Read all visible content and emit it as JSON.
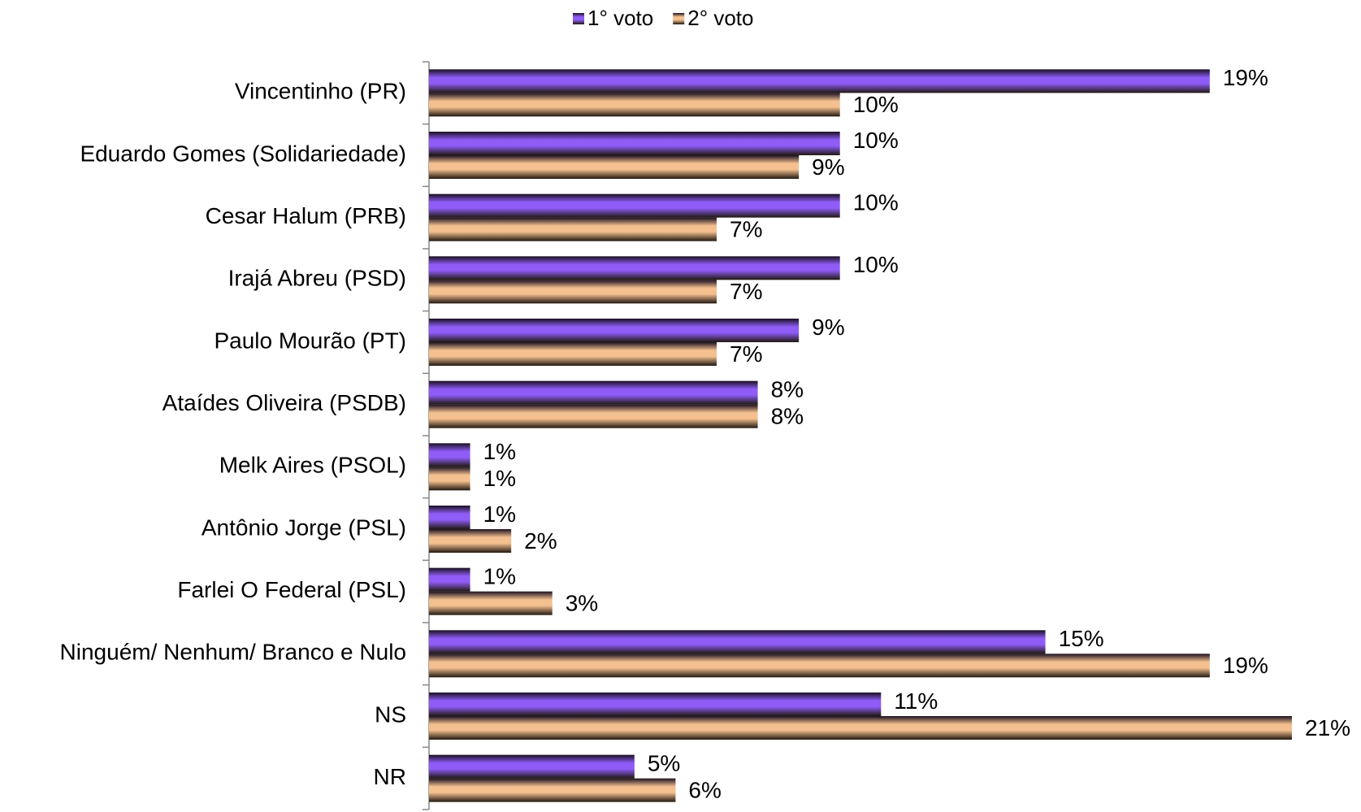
{
  "chart_data": {
    "type": "bar",
    "orientation": "horizontal",
    "categories": [
      "Vincentinho (PR)",
      "Eduardo Gomes (Solidariedade)",
      "Cesar Halum (PRB)",
      "Irajá Abreu (PSD)",
      "Paulo Mourão (PT)",
      "Ataídes Oliveira (PSDB)",
      "Melk Aires (PSOL)",
      "Antônio Jorge (PSL)",
      "Farlei O Federal (PSL)",
      "Ninguém/ Nenhum/ Branco e Nulo",
      "NS",
      "NR"
    ],
    "series": [
      {
        "name": "1° voto",
        "color": "#8f5cf7",
        "values": [
          19,
          10,
          10,
          10,
          9,
          8,
          1,
          1,
          1,
          15,
          11,
          5
        ],
        "value_labels": [
          "19%",
          "10%",
          "10%",
          "10%",
          "9%",
          "8%",
          "1%",
          "1%",
          "1%",
          "15%",
          "11%",
          "5%"
        ]
      },
      {
        "name": "2° voto",
        "color": "#f5c08f",
        "values": [
          10,
          9,
          7,
          7,
          7,
          8,
          1,
          2,
          3,
          19,
          21,
          6
        ],
        "value_labels": [
          "10%",
          "9%",
          "7%",
          "7%",
          "7%",
          "8%",
          "1%",
          "2%",
          "3%",
          "19%",
          "21%",
          "6%"
        ]
      }
    ],
    "legend": "top"
  }
}
